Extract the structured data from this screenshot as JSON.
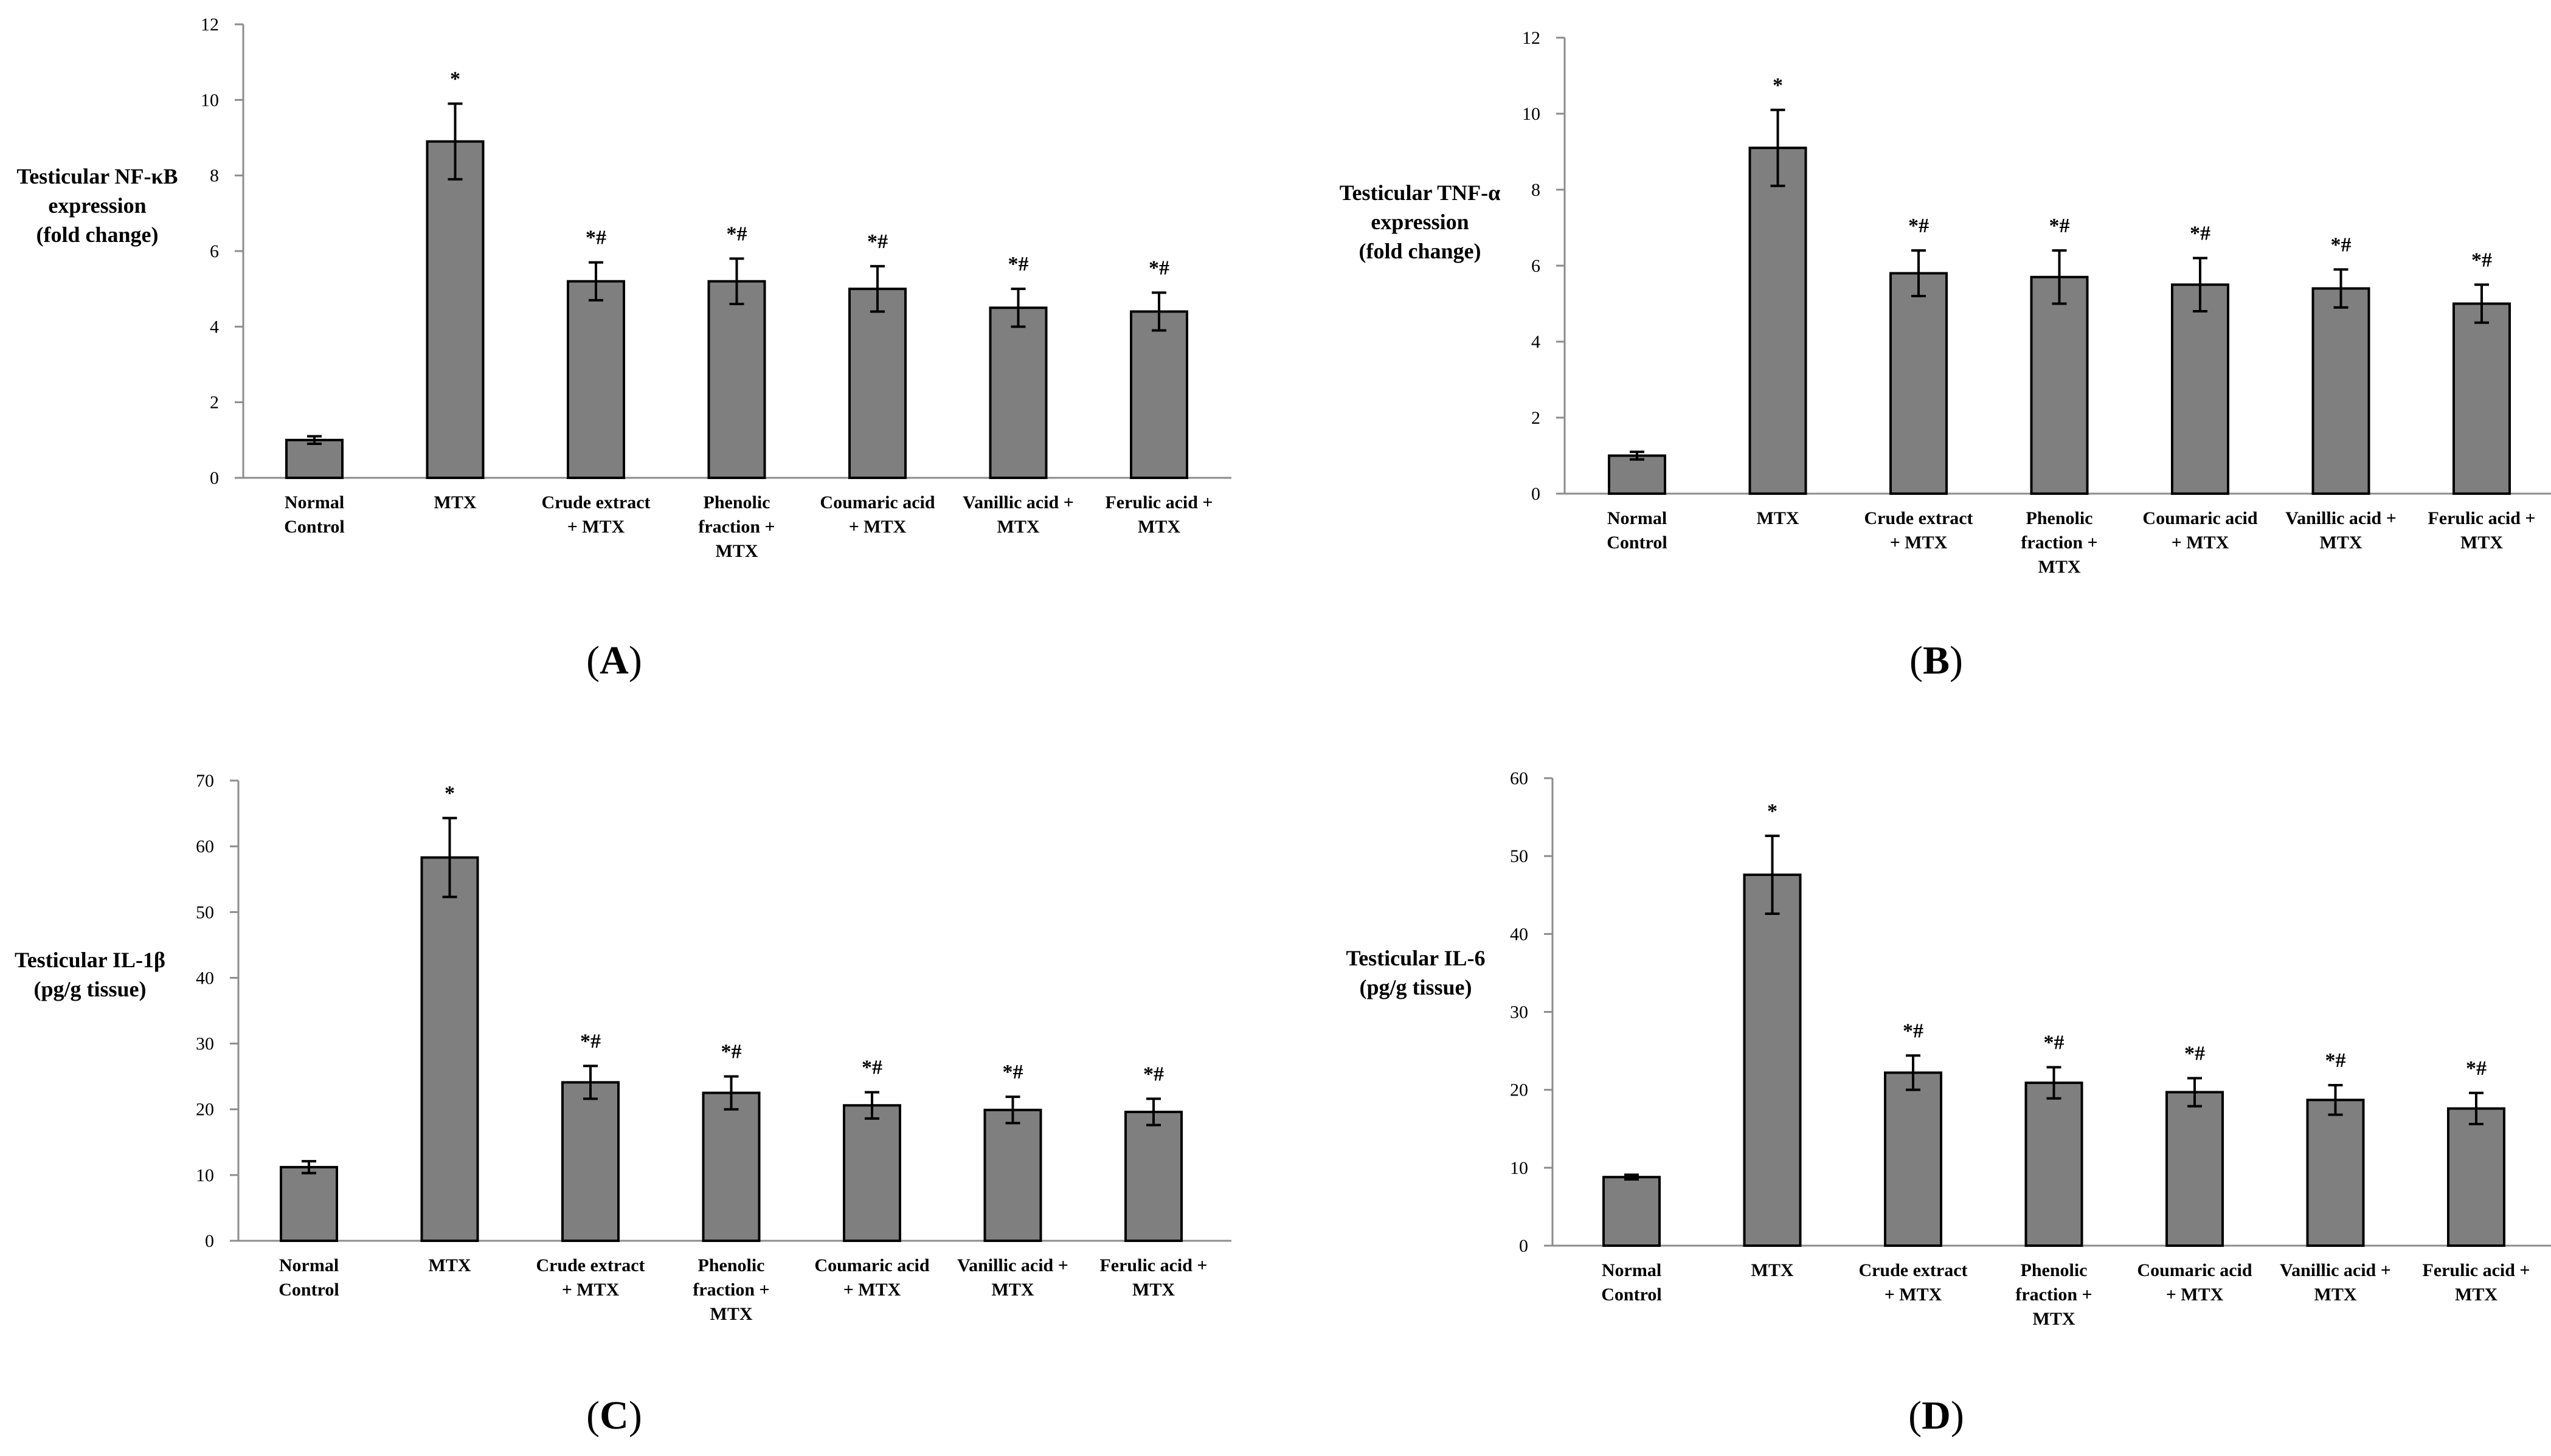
{
  "colors": {
    "bar_fill": "#7f7f7f",
    "bar_stroke": "#000000",
    "axis": "#8c8c8c",
    "text": "#000000"
  },
  "chart_data": [
    {
      "panel": "A",
      "type": "bar",
      "ylabel_lines": [
        "Testicular NF-κB",
        "expression",
        "(fold change)"
      ],
      "ylim": [
        0,
        12
      ],
      "yticks": [
        0,
        2,
        4,
        6,
        8,
        10,
        12
      ],
      "categories": [
        [
          "Normal",
          "Control"
        ],
        [
          "MTX"
        ],
        [
          "Crude extract",
          "+ MTX"
        ],
        [
          "Phenolic",
          "fraction +",
          "MTX"
        ],
        [
          "Coumaric acid",
          "+ MTX"
        ],
        [
          "Vanillic acid +",
          "MTX"
        ],
        [
          "Ferulic acid +",
          "MTX"
        ]
      ],
      "values": [
        1.0,
        8.9,
        5.2,
        5.2,
        5.0,
        4.5,
        4.4
      ],
      "errors": [
        0.1,
        1.0,
        0.5,
        0.6,
        0.6,
        0.5,
        0.5
      ],
      "annotations": [
        "",
        "*",
        "*#",
        "*#",
        "*#",
        "*#",
        "*#"
      ]
    },
    {
      "panel": "B",
      "type": "bar",
      "ylabel_lines": [
        "Testicular TNF-α",
        "expression",
        "(fold change)"
      ],
      "ylim": [
        0,
        12
      ],
      "yticks": [
        0,
        2,
        4,
        6,
        8,
        10,
        12
      ],
      "categories": [
        [
          "Normal",
          "Control"
        ],
        [
          "MTX"
        ],
        [
          "Crude extract",
          "+ MTX"
        ],
        [
          "Phenolic",
          "fraction +",
          "MTX"
        ],
        [
          "Coumaric acid",
          "+ MTX"
        ],
        [
          "Vanillic acid +",
          "MTX"
        ],
        [
          "Ferulic acid +",
          "MTX"
        ]
      ],
      "values": [
        1.0,
        9.1,
        5.8,
        5.7,
        5.5,
        5.4,
        5.0
      ],
      "errors": [
        0.1,
        1.0,
        0.6,
        0.7,
        0.7,
        0.5,
        0.5
      ],
      "annotations": [
        "",
        "*",
        "*#",
        "*#",
        "*#",
        "*#",
        "*#"
      ]
    },
    {
      "panel": "C",
      "type": "bar",
      "ylabel_lines": [
        "Testicular IL-1β",
        "(pg/g tissue)"
      ],
      "ylim": [
        0,
        70
      ],
      "yticks": [
        0,
        10,
        20,
        30,
        40,
        50,
        60,
        70
      ],
      "categories": [
        [
          "Normal",
          "Control"
        ],
        [
          "MTX"
        ],
        [
          "Crude extract",
          "+ MTX"
        ],
        [
          "Phenolic",
          "fraction +",
          "MTX"
        ],
        [
          "Coumaric acid",
          "+ MTX"
        ],
        [
          "Vanillic acid +",
          "MTX"
        ],
        [
          "Ferulic acid +",
          "MTX"
        ]
      ],
      "values": [
        11.2,
        58.3,
        24.1,
        22.5,
        20.6,
        19.9,
        19.6
      ],
      "errors": [
        0.9,
        6.0,
        2.5,
        2.5,
        2.0,
        2.0,
        2.0
      ],
      "annotations": [
        "",
        "*",
        "*#",
        "*#",
        "*#",
        "*#",
        "*#"
      ]
    },
    {
      "panel": "D",
      "type": "bar",
      "ylabel_lines": [
        "Testicular IL-6",
        "(pg/g tissue)"
      ],
      "ylim": [
        0,
        60
      ],
      "yticks": [
        0,
        10,
        20,
        30,
        40,
        50,
        60
      ],
      "categories": [
        [
          "Normal",
          "Control"
        ],
        [
          "MTX"
        ],
        [
          "Crude extract",
          "+ MTX"
        ],
        [
          "Phenolic",
          "fraction +",
          "MTX"
        ],
        [
          "Coumaric acid",
          "+ MTX"
        ],
        [
          "Vanillic acid +",
          "MTX"
        ],
        [
          "Ferulic acid +",
          "MTX"
        ]
      ],
      "values": [
        8.8,
        47.6,
        22.2,
        20.9,
        19.7,
        18.7,
        17.6
      ],
      "errors": [
        0.3,
        5.0,
        2.2,
        2.0,
        1.8,
        1.9,
        2.0
      ],
      "annotations": [
        "",
        "*",
        "*#",
        "*#",
        "*#",
        "*#",
        "*#"
      ]
    }
  ],
  "panel_labels": [
    {
      "open": "(",
      "letter": "A",
      "close": ")"
    },
    {
      "open": "(",
      "letter": "B",
      "close": ")"
    },
    {
      "open": "(",
      "letter": "C",
      "close": ")"
    },
    {
      "open": "(",
      "letter": "D",
      "close": ")"
    }
  ]
}
